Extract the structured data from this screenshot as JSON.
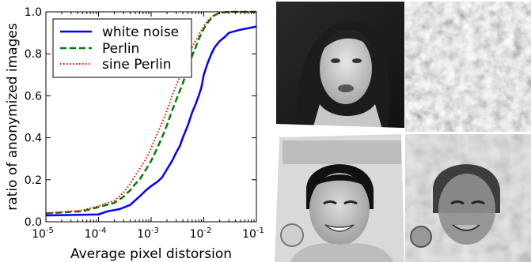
{
  "chart_data": {
    "type": "line",
    "title": "",
    "xlabel": "Average pixel distorsion",
    "ylabel": "ratio of anonymized images",
    "xscale": "log",
    "xlim": [
      1e-05,
      0.1
    ],
    "ylim": [
      0.0,
      1.0
    ],
    "x_ticks": [
      1e-05,
      0.0001,
      0.001,
      0.01,
      0.1
    ],
    "x_tick_labels": [
      {
        "base": "10",
        "exp": "-5"
      },
      {
        "base": "10",
        "exp": "-4"
      },
      {
        "base": "10",
        "exp": "-3"
      },
      {
        "base": "10",
        "exp": "-2"
      },
      {
        "base": "10",
        "exp": "-1"
      }
    ],
    "y_ticks": [
      "0.0",
      "0.2",
      "0.4",
      "0.6",
      "0.8",
      "1.0"
    ],
    "grid": false,
    "legend_position": "top-left",
    "series": [
      {
        "name": "white noise",
        "color": "#0000ff",
        "style": "solid",
        "x": [
          1e-05,
          0.0001,
          0.00015,
          0.00025,
          0.0004,
          0.0006,
          0.0008,
          0.001,
          0.0013,
          0.0016,
          0.002,
          0.0025,
          0.003,
          0.0035,
          0.004,
          0.005,
          0.006,
          0.007,
          0.008,
          0.009,
          0.01,
          0.012,
          0.014,
          0.016,
          0.02,
          0.025,
          0.03,
          0.05,
          0.1
        ],
        "y": [
          0.03,
          0.035,
          0.05,
          0.06,
          0.08,
          0.12,
          0.15,
          0.17,
          0.19,
          0.21,
          0.25,
          0.29,
          0.33,
          0.36,
          0.4,
          0.46,
          0.52,
          0.56,
          0.6,
          0.64,
          0.7,
          0.76,
          0.8,
          0.83,
          0.86,
          0.88,
          0.9,
          0.915,
          0.93
        ]
      },
      {
        "name": "Perlin",
        "color": "#008000",
        "style": "dashed",
        "x": [
          1e-05,
          5e-05,
          0.0001,
          0.0002,
          0.0003,
          0.0004,
          0.0005,
          0.0006,
          0.0008,
          0.001,
          0.0013,
          0.0016,
          0.002,
          0.0025,
          0.003,
          0.004,
          0.005,
          0.006,
          0.007,
          0.008,
          0.01,
          0.012,
          0.015,
          0.02,
          0.03,
          0.1
        ],
        "y": [
          0.04,
          0.05,
          0.07,
          0.09,
          0.12,
          0.15,
          0.18,
          0.2,
          0.25,
          0.29,
          0.35,
          0.4,
          0.46,
          0.53,
          0.58,
          0.66,
          0.73,
          0.79,
          0.83,
          0.87,
          0.92,
          0.95,
          0.98,
          0.995,
          1.0,
          1.0
        ]
      },
      {
        "name": "sine Perlin",
        "color": "#ff0000",
        "style": "dotted",
        "x": [
          1e-05,
          5e-05,
          0.0001,
          0.0002,
          0.0003,
          0.0004,
          0.0005,
          0.0006,
          0.0008,
          0.001,
          0.0013,
          0.0016,
          0.002,
          0.0025,
          0.003,
          0.004,
          0.005,
          0.006,
          0.008,
          0.01,
          0.012,
          0.015,
          0.02,
          0.03,
          0.1
        ],
        "y": [
          0.04,
          0.055,
          0.075,
          0.1,
          0.14,
          0.18,
          0.22,
          0.25,
          0.3,
          0.35,
          0.42,
          0.47,
          0.53,
          0.6,
          0.65,
          0.72,
          0.78,
          0.83,
          0.89,
          0.93,
          0.96,
          0.98,
          0.995,
          1.0,
          1.0
        ]
      }
    ]
  }
}
